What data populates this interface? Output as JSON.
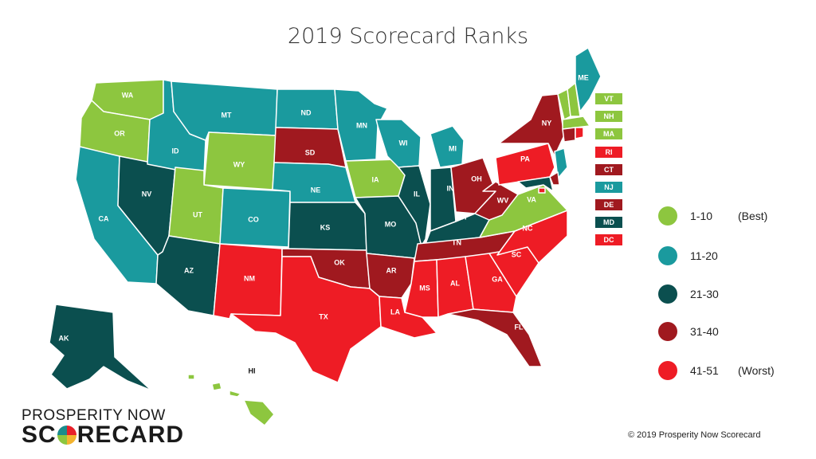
{
  "title": "2019 Scorecard Ranks",
  "colors": {
    "rank_1_10": "#8dc63f",
    "rank_11_20": "#1a9a9e",
    "rank_21_30": "#0b4f4f",
    "rank_31_40": "#a0191f",
    "rank_41_51": "#ee1c25"
  },
  "states": {
    "WA": "WA",
    "OR": "OR",
    "CA": "CA",
    "NV": "NV",
    "ID": "ID",
    "MT": "MT",
    "WY": "WY",
    "UT": "UT",
    "AZ": "AZ",
    "CO": "CO",
    "NM": "NM",
    "ND": "ND",
    "SD": "SD",
    "NE": "NE",
    "KS": "KS",
    "OK": "OK",
    "TX": "TX",
    "MN": "MN",
    "IA": "IA",
    "MO": "MO",
    "AR": "AR",
    "LA": "LA",
    "WI": "WI",
    "IL": "IL",
    "MI": "MI",
    "IN": "IN",
    "OH": "OH",
    "KY": "KY",
    "TN": "TN",
    "MS": "MS",
    "AL": "AL",
    "GA": "GA",
    "FL": "FL",
    "SC": "SC",
    "NC": "NC",
    "VA": "VA",
    "WV": "WV",
    "PA": "PA",
    "NY": "NY",
    "ME": "ME",
    "AK": "AK",
    "HI": "HI"
  },
  "small_state_chips": [
    {
      "label": "VT",
      "tier": "rank_1_10"
    },
    {
      "label": "NH",
      "tier": "rank_1_10"
    },
    {
      "label": "MA",
      "tier": "rank_1_10"
    },
    {
      "label": "RI",
      "tier": "rank_41_51"
    },
    {
      "label": "CT",
      "tier": "rank_31_40"
    },
    {
      "label": "NJ",
      "tier": "rank_11_20"
    },
    {
      "label": "DE",
      "tier": "rank_31_40"
    },
    {
      "label": "MD",
      "tier": "rank_21_30"
    },
    {
      "label": "DC",
      "tier": "rank_41_51"
    }
  ],
  "legend": [
    {
      "range": "1-10",
      "note": "(Best)",
      "tier": "rank_1_10"
    },
    {
      "range": "11-20",
      "note": "",
      "tier": "rank_11_20"
    },
    {
      "range": "21-30",
      "note": "",
      "tier": "rank_21_30"
    },
    {
      "range": "31-40",
      "note": "",
      "tier": "rank_31_40"
    },
    {
      "range": "41-51",
      "note": "(Worst)",
      "tier": "rank_41_51"
    }
  ],
  "logo": {
    "line1": "PROSPERITY NOW",
    "line2a": "SC",
    "line2b": "RECARD"
  },
  "copyright": "© 2019 Prosperity Now Scorecard"
}
